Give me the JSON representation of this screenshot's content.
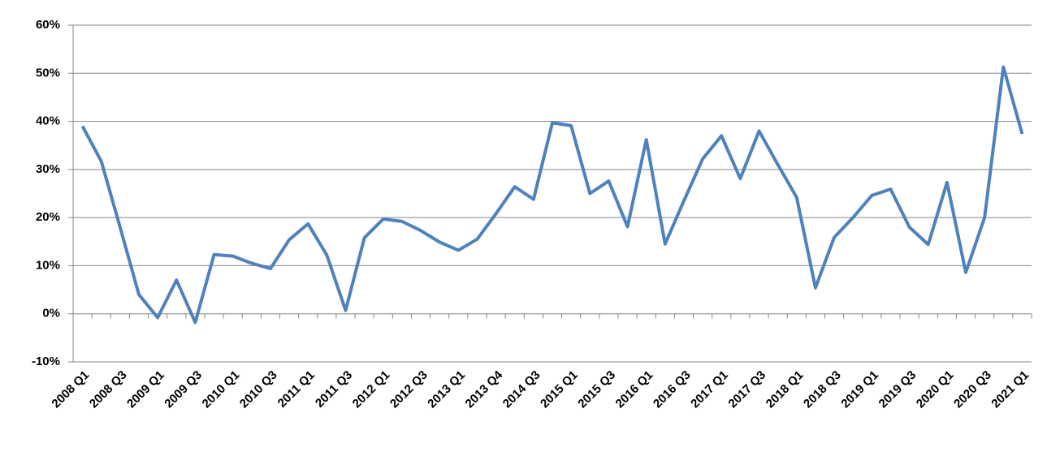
{
  "chart_data": {
    "type": "line",
    "categories": [
      "2008 Q1",
      null,
      "2008 Q3",
      null,
      "2009 Q1",
      null,
      "2009 Q3",
      null,
      "2010 Q1",
      null,
      "2010 Q3",
      null,
      "2011 Q1",
      null,
      "2011 Q3",
      null,
      "2012 Q1",
      null,
      "2012 Q3",
      null,
      "2013 Q1",
      null,
      "2013 Q4",
      null,
      "2014 Q3",
      null,
      "2015 Q1",
      null,
      "2015 Q3",
      null,
      "2016 Q1",
      null,
      "2016 Q3",
      null,
      "2017 Q1",
      null,
      "2017 Q3",
      null,
      "2018 Q1",
      null,
      "2018 Q3",
      null,
      "2019 Q1",
      null,
      "2019 Q3",
      null,
      "2020 Q1",
      null,
      "2020 Q3",
      null,
      "2021 Q1"
    ],
    "series": [
      {
        "color": "#4f81bd",
        "values": [
          39,
          31.7,
          18,
          4,
          -0.8,
          7,
          -1.8,
          12.3,
          12,
          10.5,
          9.4,
          15.4,
          18.7,
          12.2,
          0.7,
          15.8,
          19.7,
          19.2,
          17.3,
          14.9,
          13.2,
          15.5,
          20.8,
          26.4,
          23.8,
          39.7,
          39.1,
          25,
          27.6,
          18.1,
          36.2,
          14.5,
          23.5,
          32.2,
          37,
          28.1,
          38,
          31,
          24.2,
          5.4,
          15.9,
          20,
          24.6,
          25.9,
          18,
          14.4,
          27.3,
          8.6,
          20,
          51.3,
          37.4
        ]
      }
    ],
    "ylim": [
      -10,
      60
    ],
    "yticks": [
      {
        "value": -10,
        "label": "-10%"
      },
      {
        "value": 0,
        "label": "0%"
      },
      {
        "value": 10,
        "label": "10%"
      },
      {
        "value": 20,
        "label": "20%"
      },
      {
        "value": 30,
        "label": "30%"
      },
      {
        "value": 40,
        "label": "40%"
      },
      {
        "value": 50,
        "label": "50%"
      },
      {
        "value": 60,
        "label": "60%"
      }
    ],
    "grid": true
  }
}
